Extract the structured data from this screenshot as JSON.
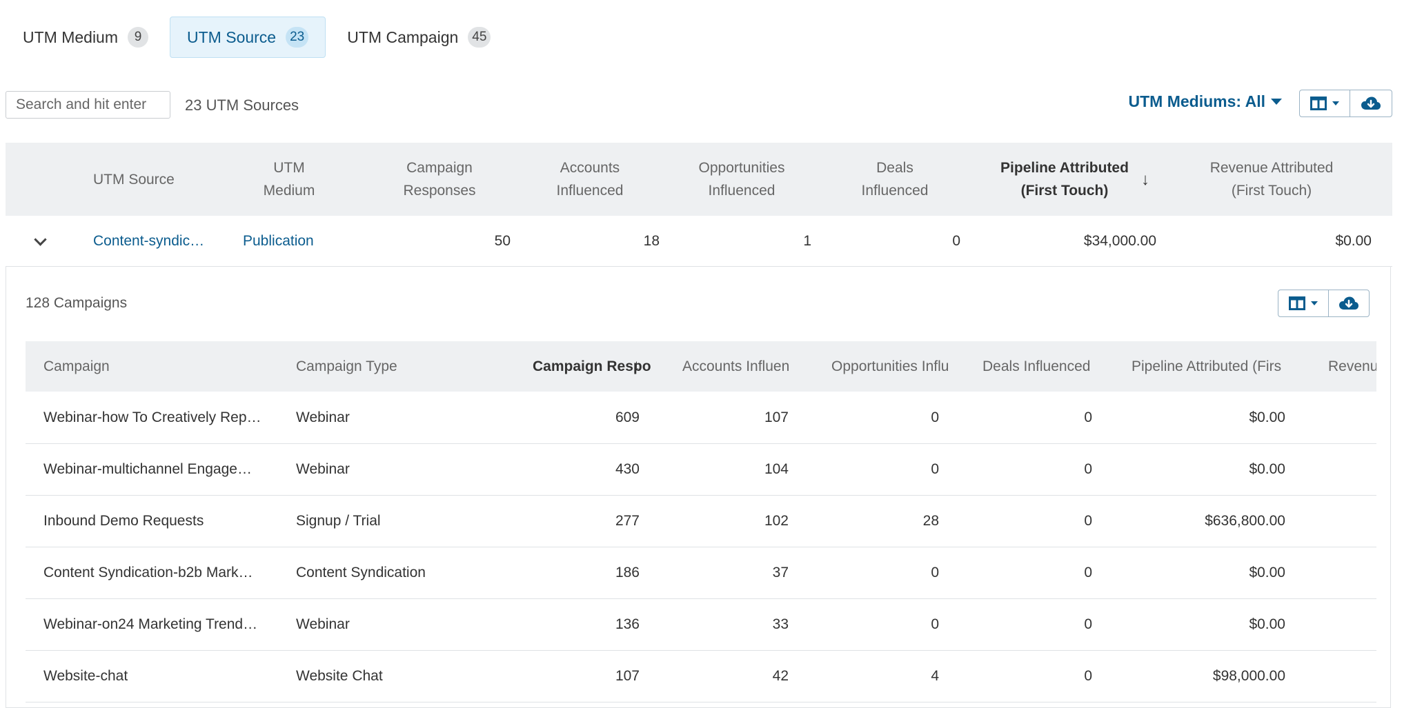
{
  "tabs": [
    {
      "label": "UTM Medium",
      "count": "9",
      "active": false
    },
    {
      "label": "UTM Source",
      "count": "23",
      "active": true
    },
    {
      "label": "UTM Campaign",
      "count": "45",
      "active": false
    }
  ],
  "toolbar": {
    "search_placeholder": "Search and hit enter",
    "count_text": "23 UTM Sources",
    "filter_label": "UTM Mediums: All",
    "columns_icon": "columns-icon",
    "download_icon": "cloud-download-icon"
  },
  "outer_table": {
    "headers": {
      "utm_source": "UTM Source",
      "utm_medium_1": "UTM",
      "utm_medium_2": "Medium",
      "responses_1": "Campaign",
      "responses_2": "Responses",
      "accounts_1": "Accounts",
      "accounts_2": "Influenced",
      "opps_1": "Opportunities",
      "opps_2": "Influenced",
      "deals_1": "Deals",
      "deals_2": "Influenced",
      "pipeline_1": "Pipeline Attributed",
      "pipeline_2": "(First Touch)",
      "revenue_1": "Revenue Attributed",
      "revenue_2": "(First Touch)"
    },
    "row": {
      "source": "Content-syndic…",
      "medium": "Publication",
      "responses": "50",
      "accounts": "18",
      "opps": "1",
      "deals": "0",
      "pipeline": "$34,000.00",
      "revenue": "$0.00"
    }
  },
  "panel": {
    "count_text": "128 Campaigns",
    "headers": {
      "campaign": "Campaign",
      "type": "Campaign Type",
      "responses": "Campaign Respo",
      "accounts": "Accounts Influen",
      "opps": "Opportunities Influ",
      "deals": "Deals Influenced",
      "pipeline": "Pipeline Attributed (Firs",
      "revenue": "Revenu"
    },
    "rows": [
      {
        "campaign": "Webinar-how To Creatively Rep…",
        "type": "Webinar",
        "responses": "609",
        "accounts": "107",
        "opps": "0",
        "deals": "0",
        "pipeline": "$0.00"
      },
      {
        "campaign": "Webinar-multichannel Engage…",
        "type": "Webinar",
        "responses": "430",
        "accounts": "104",
        "opps": "0",
        "deals": "0",
        "pipeline": "$0.00"
      },
      {
        "campaign": "Inbound Demo Requests",
        "type": "Signup / Trial",
        "responses": "277",
        "accounts": "102",
        "opps": "28",
        "deals": "0",
        "pipeline": "$636,800.00"
      },
      {
        "campaign": "Content Syndication-b2b Mark…",
        "type": "Content Syndication",
        "responses": "186",
        "accounts": "37",
        "opps": "0",
        "deals": "0",
        "pipeline": "$0.00"
      },
      {
        "campaign": "Webinar-on24 Marketing Trend…",
        "type": "Webinar",
        "responses": "136",
        "accounts": "33",
        "opps": "0",
        "deals": "0",
        "pipeline": "$0.00"
      },
      {
        "campaign": "Website-chat",
        "type": "Website Chat",
        "responses": "107",
        "accounts": "42",
        "opps": "4",
        "deals": "0",
        "pipeline": "$98,000.00"
      }
    ]
  }
}
